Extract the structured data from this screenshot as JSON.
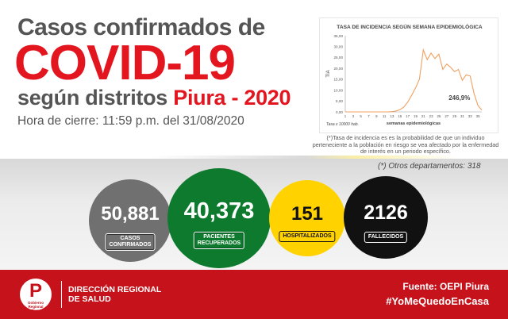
{
  "header": {
    "line1": "Casos confirmados de",
    "line2": "COVID-19",
    "line3_prefix": "según distritos",
    "line3_accent": "Piura - 2020",
    "closing_time": "Hora de cierre: 11:59 p.m. del 31/08/2020"
  },
  "chart_note": "(*)Tasa de incidencia es es la probabilidad de que un individuo perteneciente a la población en riesgo se vea afectado por la enfermedad de interés en un periodo específico.",
  "other_departments": "(*) Otros departamentos: 318",
  "stats": {
    "cases": {
      "value": "50,881",
      "label_line1": "CASOS",
      "label_line2": "CONFIRMADOS"
    },
    "recovered": {
      "value": "40,373",
      "label_line1": "PACIENTES",
      "label_line2": "RECUPERADOS"
    },
    "hospitalized": {
      "value": "151",
      "label": "HOSPITALIZADOS"
    },
    "deaths": {
      "value": "2126",
      "label": "FALLECIDOS"
    }
  },
  "footer": {
    "logo_letter": "P",
    "logo_sub_line1": "Gobierno",
    "logo_sub_line2": "Regional",
    "logo_sub_line3": "Piura",
    "org_line1": "DIRECCIÓN REGIONAL",
    "org_line2": "DE SALUD",
    "source": "Fuente: OEPI Piura",
    "hashtag": "#YoMeQuedoEnCasa"
  },
  "colors": {
    "red": "#e3151e",
    "footer_red": "#c5121b",
    "gray_text": "#555555",
    "cases_gray": "#707070",
    "recovered_green": "#0d7a2d",
    "hospitalized_yellow": "#ffd200",
    "deaths_black": "#111111",
    "chart_line": "#f0a060"
  },
  "chart_data": {
    "type": "line",
    "title": "TASA DE INCIDENCIA SEGÚN SEMANA EPIDEMIOLÓGICA",
    "xlabel": "semanas epidemiológicas",
    "ylabel": "TIA",
    "footnote": "Tasa x 10000 hab.",
    "annotation": "246,9%",
    "xlim": [
      1,
      36
    ],
    "ylim": [
      0,
      35
    ],
    "x_ticks": [
      "1",
      "3",
      "5",
      "7",
      "9",
      "11",
      "13",
      "15",
      "17",
      "19",
      "21",
      "23",
      "25",
      "27",
      "29",
      "31",
      "33",
      "35"
    ],
    "y_ticks": [
      "0,00",
      "5,00",
      "10,00",
      "15,00",
      "20,00",
      "25,00",
      "30,00",
      "35,00"
    ],
    "x": [
      1,
      2,
      3,
      4,
      5,
      6,
      7,
      8,
      9,
      10,
      11,
      12,
      13,
      14,
      15,
      16,
      17,
      18,
      19,
      20,
      21,
      22,
      23,
      24,
      25,
      26,
      27,
      28,
      29,
      30,
      31,
      32,
      33,
      34,
      35,
      36
    ],
    "values": [
      0,
      0,
      0,
      0,
      0,
      0,
      0,
      0,
      0,
      0,
      0,
      0,
      0.1,
      0.4,
      1.0,
      2.2,
      4.5,
      7.5,
      11.0,
      15.0,
      28.5,
      24.0,
      27.0,
      24.5,
      26.5,
      19.5,
      22.0,
      20.5,
      18.5,
      19.5,
      14.5,
      17.0,
      16.5,
      8.5,
      3.0,
      0.8
    ],
    "grid": false,
    "legend": "none"
  }
}
